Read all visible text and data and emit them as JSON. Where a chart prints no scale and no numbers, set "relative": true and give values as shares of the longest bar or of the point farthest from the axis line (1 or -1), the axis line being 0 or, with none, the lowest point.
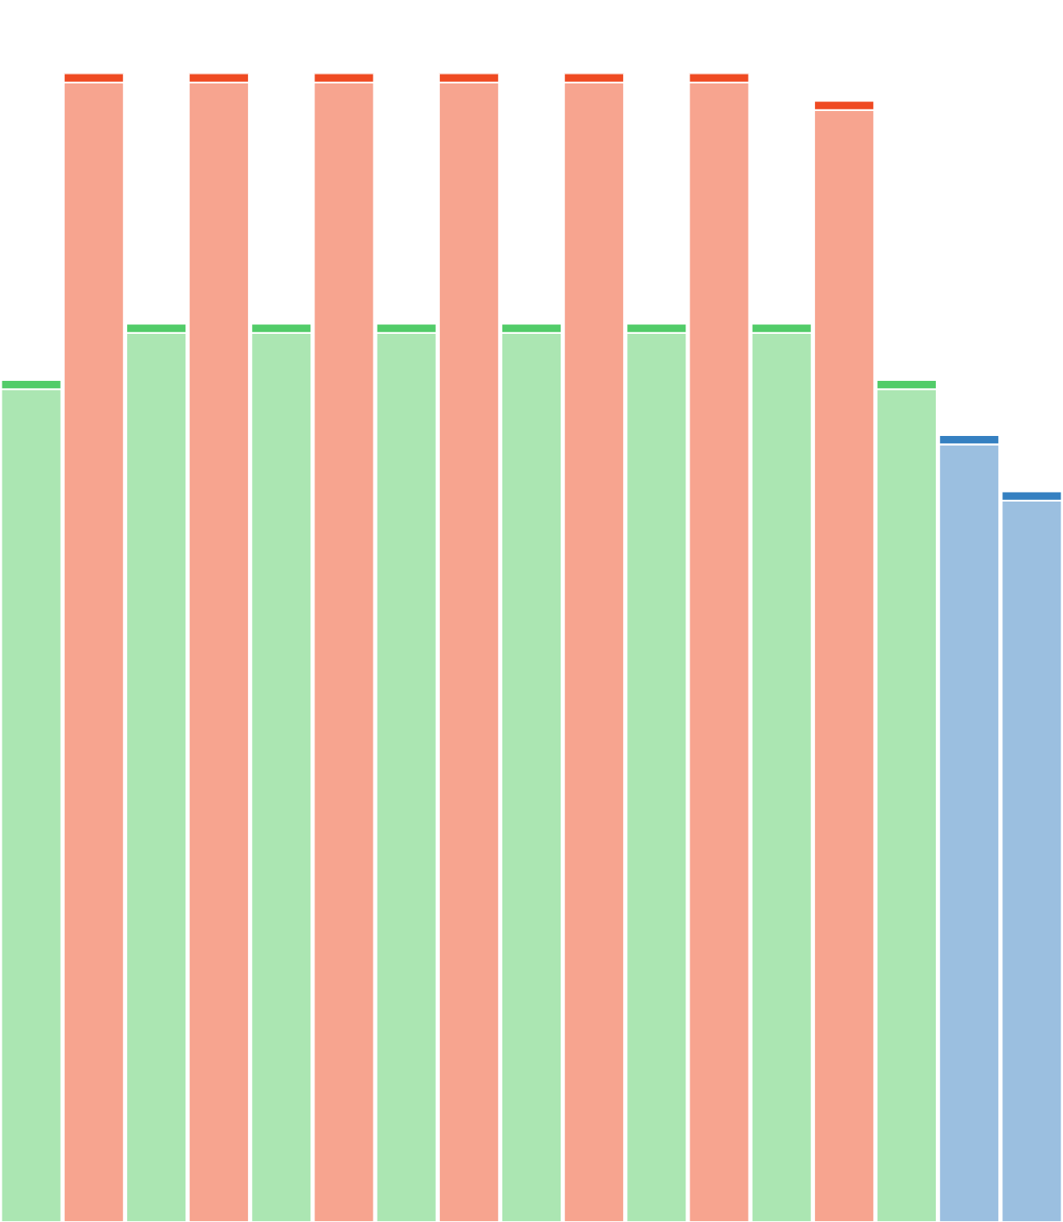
{
  "chart_data": {
    "type": "bar",
    "relative": true,
    "stacked": true,
    "categories": [
      null,
      null,
      null,
      null,
      null,
      null,
      null,
      null,
      null,
      null,
      null,
      null,
      null,
      null,
      null,
      null,
      null
    ],
    "series": [
      {
        "colors": [
          "#abe6b2",
          "#f7a48f",
          "#abe6b2",
          "#f7a48f",
          "#abe6b2",
          "#f7a48f",
          "#abe6b2",
          "#f7a48f",
          "#abe6b2",
          "#f7a48f",
          "#abe6b2",
          "#f7a48f",
          "#abe6b2",
          "#f7a48f",
          "#abe6b2",
          "#9bbfe0",
          "#9bbfe0"
        ],
        "values": [
          0.725,
          0.992,
          0.774,
          0.992,
          0.774,
          0.992,
          0.774,
          0.992,
          0.774,
          0.992,
          0.774,
          0.992,
          0.774,
          0.968,
          0.725,
          0.677,
          0.628
        ]
      },
      {
        "colors": [
          "#52cc69",
          "#ef4a22",
          "#52cc69",
          "#ef4a22",
          "#52cc69",
          "#ef4a22",
          "#52cc69",
          "#ef4a22",
          "#52cc69",
          "#ef4a22",
          "#52cc69",
          "#ef4a22",
          "#52cc69",
          "#ef4a22",
          "#52cc69",
          "#3580c1",
          "#3580c1"
        ],
        "values": [
          0.008,
          0.008,
          0.008,
          0.008,
          0.008,
          0.008,
          0.008,
          0.008,
          0.008,
          0.008,
          0.008,
          0.008,
          0.008,
          0.008,
          0.008,
          0.008,
          0.008
        ]
      }
    ]
  }
}
